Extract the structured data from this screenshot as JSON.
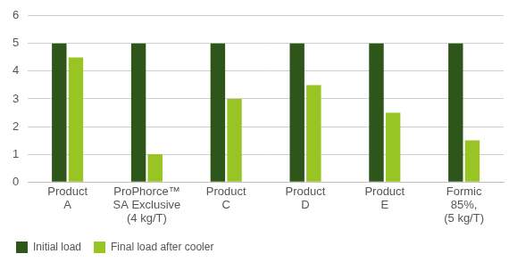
{
  "chart_data": {
    "type": "bar",
    "categories": [
      [
        "Product",
        "A"
      ],
      [
        "ProPhorce™",
        "SA Exclusive",
        "(4 kg/T)"
      ],
      [
        "Product",
        "C"
      ],
      [
        "Product",
        "D"
      ],
      [
        "Product",
        "E"
      ],
      [
        "Formic",
        "85%,",
        "(5 kg/T)"
      ]
    ],
    "series": [
      {
        "name": "Initial load",
        "color": "#2e561a",
        "values": [
          5,
          5,
          5,
          5,
          5,
          5
        ]
      },
      {
        "name": "Final load after cooler",
        "color": "#98c424",
        "values": [
          4.5,
          1,
          3,
          3.5,
          2.5,
          1.5
        ]
      }
    ],
    "ylim": [
      0,
      6
    ],
    "yticks": [
      0,
      1,
      2,
      3,
      4,
      5,
      6
    ],
    "grid": true,
    "legend": "bottom-left"
  }
}
